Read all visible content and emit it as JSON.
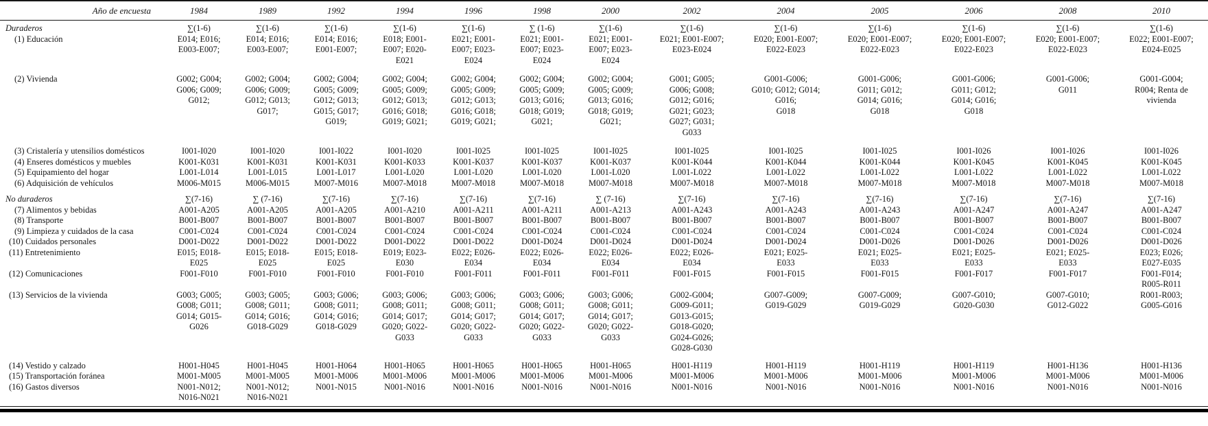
{
  "table": {
    "corner_label": "Año de encuesta",
    "years": [
      "1984",
      "1989",
      "1992",
      "1994",
      "1996",
      "1998",
      "2000",
      "2002",
      "2004",
      "2005",
      "2006",
      "2008",
      "2010"
    ],
    "rows": [
      {
        "label": "Duraderos",
        "style": "group",
        "gap": "first",
        "cells": [
          "∑(1-6)",
          "∑(1-6)",
          "∑(1-6)",
          "∑(1-6)",
          "∑(1-6)",
          "∑ (1-6)",
          "∑(1-6)",
          "∑(1-6)",
          "∑(1-6)",
          "∑(1-6)",
          "∑(1-6)",
          "∑(1-6)",
          "∑(1-6)"
        ]
      },
      {
        "label": "(1) Educación",
        "style": "i1",
        "gap": "none",
        "cells": [
          "E014; E016;\nE003-E007;",
          "E014; E016;\nE003-E007;",
          "E014; E016;\nE001-E007;",
          "E018; E001-\nE007; E020-\nE021",
          "E021; E001-\nE007; E023-\nE024",
          "E021; E001-\nE007; E023-\nE024",
          "E021; E001-\nE007; E023-\nE024",
          "E021; E001-E007;\nE023-E024",
          "E020; E001-E007;\nE022-E023",
          "E020; E001-E007;\nE022-E023",
          "E020; E001-E007;\nE022-E023",
          "E020; E001-E007;\nE022-E023",
          "E022; E001-E007;\nE024-E025"
        ]
      },
      {
        "label": "(2) Vivienda",
        "style": "i1",
        "gap": "gap",
        "cells": [
          "G002; G004;\nG006; G009;\nG012;",
          "G002; G004;\nG006; G009;\nG012; G013;\nG017;",
          "G002; G004;\nG005; G009;\nG012; G013;\nG015; G017;\nG019;",
          "G002; G004;\nG005; G009;\nG012; G013;\nG016; G018;\nG019; G021;",
          "G002; G004;\nG005; G009;\nG012; G013;\nG016; G018;\nG019; G021;",
          "G002; G004;\nG005; G009;\nG013; G016;\nG018; G019;\nG021;",
          "G002; G004;\nG005; G009;\nG013; G016;\nG018; G019;\nG021;",
          "G001; G005;\nG006; G008;\nG012; G016;\nG021; G023;\nG027; G031;\nG033",
          "G001-G006;\nG010; G012; G014;\nG016;\nG018",
          "G001-G006;\nG011; G012;\nG014; G016;\nG018",
          "G001-G006;\nG011; G012;\nG014; G016;\nG018",
          "G001-G006;\nG011",
          "G001-G004;\nR004; Renta de\nvivienda"
        ]
      },
      {
        "label": "(3) Cristalería y utensilios domésticos",
        "style": "i1",
        "gap": "gap",
        "cells": [
          "I001-I020",
          "I001-I020",
          "I001-I022",
          "I001-I020",
          "I001-I025",
          "I001-I025",
          "I001-I025",
          "I001-I025",
          "I001-I025",
          "I001-I025",
          "I001-I026",
          "I001-I026",
          "I001-I026"
        ]
      },
      {
        "label": "(4) Enseres domésticos y muebles",
        "style": "i1",
        "gap": "none",
        "cells": [
          "K001-K031",
          "K001-K031",
          "K001-K031",
          "K001-K033",
          "K001-K037",
          "K001-K037",
          "K001-K037",
          "K001-K044",
          "K001-K044",
          "K001-K044",
          "K001-K045",
          "K001-K045",
          "K001-K045"
        ]
      },
      {
        "label": "(5) Equipamiento del hogar",
        "style": "i1",
        "gap": "none",
        "cells": [
          "L001-L014",
          "L001-L015",
          "L001-L017",
          "L001-L020",
          "L001-L020",
          "L001-L020",
          "L001-L020",
          "L001-L022",
          "L001-L022",
          "L001-L022",
          "L001-L022",
          "L001-L022",
          "L001-L022"
        ]
      },
      {
        "label": "(6) Adquisición de vehículos",
        "style": "i1",
        "gap": "none",
        "cells": [
          "M006-M015",
          "M006-M015",
          "M007-M016",
          "M007-M018",
          "M007-M018",
          "M007-M018",
          "M007-M018",
          "M007-M018",
          "M007-M018",
          "M007-M018",
          "M007-M018",
          "M007-M018",
          "M007-M018"
        ]
      },
      {
        "label": "No duraderos",
        "style": "group",
        "gap": "gap-sm",
        "cells": [
          "∑(7-16)",
          "∑ (7-16)",
          "∑(7-16)",
          "∑(7-16)",
          "∑(7-16)",
          "∑(7-16)",
          "∑ (7-16)",
          "∑(7-16)",
          "∑(7-16)",
          "∑(7-16)",
          "∑(7-16)",
          "∑(7-16)",
          "∑(7-16)"
        ]
      },
      {
        "label": "(7) Alimentos y bebidas",
        "style": "i1",
        "gap": "none",
        "cells": [
          "A001-A205",
          "A001-A205",
          "A001-A205",
          "A001-A210",
          "A001-A211",
          "A001-A211",
          "A001-A213",
          "A001-A243",
          "A001-A243",
          "A001-A243",
          "A001-A247",
          "A001-A247",
          "A001-A247"
        ]
      },
      {
        "label": "(8) Transporte",
        "style": "i1",
        "gap": "none",
        "cells": [
          "B001-B007",
          "B001-B007",
          "B001-B007",
          "B001-B007",
          "B001-B007",
          "B001-B007",
          "B001-B007",
          "B001-B007",
          "B001-B007",
          "B001-B007",
          "B001-B007",
          "B001-B007",
          "B001-B007"
        ]
      },
      {
        "label": "(9) Limpieza y cuidados de la casa",
        "style": "i1",
        "gap": "none",
        "cells": [
          "C001-C024",
          "C001-C024",
          "C001-C024",
          "C001-C024",
          "C001-C024",
          "C001-C024",
          "C001-C024",
          "C001-C024",
          "C001-C024",
          "C001-C024",
          "C001-C024",
          "C001-C024",
          "C001-C024"
        ]
      },
      {
        "label": "(10) Cuidados personales",
        "style": "i2",
        "gap": "none",
        "cells": [
          "D001-D022",
          "D001-D022",
          "D001-D022",
          "D001-D022",
          "D001-D022",
          "D001-D024",
          "D001-D024",
          "D001-D024",
          "D001-D024",
          "D001-D026",
          "D001-D026",
          "D001-D026",
          "D001-D026"
        ]
      },
      {
        "label": "(11) Entretenimiento",
        "style": "i2",
        "gap": "none",
        "cells": [
          "E015; E018-\nE025",
          "E015; E018-\nE025",
          "E015; E018-\nE025",
          "E019; E023-\nE030",
          "E022; E026-\nE034",
          "E022; E026-\nE034",
          "E022; E026-\nE034",
          "E022; E026-\nE034",
          "E021; E025-\nE033",
          "E021; E025-\nE033",
          "E021; E025-\nE033",
          "E021; E025-\nE033",
          "E023; E026;\nE027-E035"
        ]
      },
      {
        "label": "(12) Comunicaciones",
        "style": "i2",
        "gap": "none",
        "cells": [
          "F001-F010",
          "F001-F010",
          "F001-F010",
          "F001-F010",
          "F001-F011",
          "F001-F011",
          "F001-F011",
          "F001-F015",
          "F001-F015",
          "F001-F015",
          "F001-F017",
          "F001-F017",
          "F001-F014;\nR005-R011"
        ]
      },
      {
        "label": "(13) Servicios de la vivienda",
        "style": "i2",
        "gap": "none",
        "cells": [
          "G003; G005;\nG008; G011;\nG014; G015-\nG026",
          "G003; G005;\nG008; G011;\nG014; G016;\nG018-G029",
          "G003; G006;\nG008; G011;\nG014; G016;\nG018-G029",
          "G003; G006;\nG008; G011;\nG014; G017;\nG020; G022-\nG033",
          "G003; G006;\nG008; G011;\nG014; G017;\nG020; G022-\nG033",
          "G003; G006;\nG008; G011;\nG014; G017;\nG020; G022-\nG033",
          "G003; G006;\nG008; G011;\nG014; G017;\nG020; G022-\nG033",
          "G002-G004;\nG009-G011;\nG013-G015;\nG018-G020;\nG024-G026;\nG028-G030",
          "G007-G009;\nG019-G029",
          "G007-G009;\nG019-G029",
          "G007-G010;\nG020-G030",
          "G007-G010;\nG012-G022",
          "R001-R003;\nG005-G016"
        ]
      },
      {
        "label": "(14) Vestido y calzado",
        "style": "i2",
        "gap": "gap-md",
        "cells": [
          "H001-H045",
          "H001-H045",
          "H001-H064",
          "H001-H065",
          "H001-H065",
          "H001-H065",
          "H001-H065",
          "H001-H119",
          "H001-H119",
          "H001-H119",
          "H001-H119",
          "H001-H136",
          "H001-H136"
        ]
      },
      {
        "label": "(15) Transportación foránea",
        "style": "i2",
        "gap": "none",
        "cells": [
          "M001-M005",
          "M001-M005",
          "M001-M006",
          "M001-M006",
          "M001-M006",
          "M001-M006",
          "M001-M006",
          "M001-M006",
          "M001-M006",
          "M001-M006",
          "M001-M006",
          "M001-M006",
          "M001-M006"
        ]
      },
      {
        "label": "(16) Gastos diversos",
        "style": "i2",
        "gap": "none",
        "cells": [
          "N001-N012;\nN016-N021",
          "N001-N012;\nN016-N021",
          "N001-N015",
          "N001-N016",
          "N001-N016",
          "N001-N016",
          "N001-N016",
          "N001-N016",
          "N001-N016",
          "N001-N016",
          "N001-N016",
          "N001-N016",
          "N001-N016"
        ]
      }
    ]
  }
}
